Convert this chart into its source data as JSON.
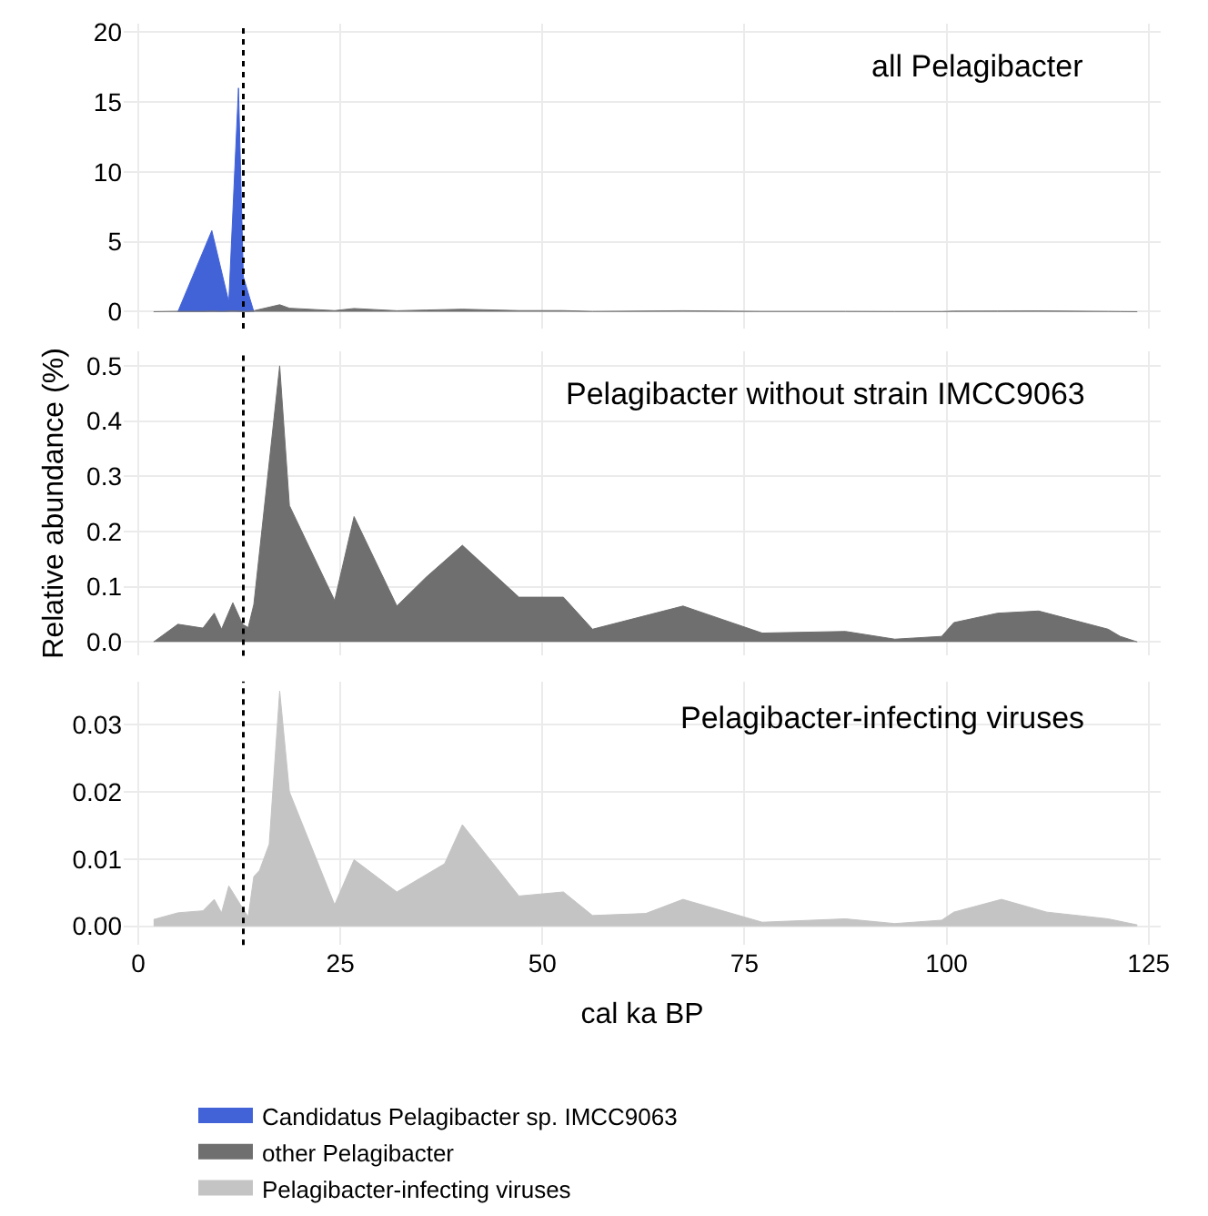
{
  "chart_data": [
    {
      "type": "area",
      "title": "all Pelagibacter",
      "xlim": [
        -1.8,
        126.5
      ],
      "xticks": [
        0,
        25,
        50,
        75,
        100,
        125
      ],
      "ylim": [
        -1.2,
        20.6
      ],
      "yticks": [
        0,
        5,
        10,
        15,
        20
      ],
      "grid": true,
      "tick_labels": "y",
      "legend": "bottom",
      "ref_lines": [
        {
          "axis": "x",
          "value": 13,
          "color": "#000000",
          "line_style": "dotted"
        }
      ],
      "series": [
        {
          "name": "Candidatus Pelagibacter sp. IMCC9063",
          "color": "#4262d8",
          "x": [
            4.9,
            9.1,
            11.2,
            12.4,
            13.0,
            14.3
          ],
          "values": [
            0,
            5.8,
            0.7,
            16,
            2.5,
            0
          ]
        },
        {
          "name": "other Pelagibacter",
          "color": "#6f6f6f",
          "x": [
            1.9,
            4.9,
            8.0,
            9.4,
            10.3,
            11.7,
            12.9,
            13.6,
            14.3,
            17.5,
            18.7,
            24.3,
            26.7,
            32.0,
            35.6,
            40.1,
            47.1,
            52.6,
            56.2,
            67.4,
            77.2,
            87.5,
            93.6,
            99.4,
            100.9,
            106.3,
            111.4,
            120.0,
            121.5,
            123.6
          ],
          "values": [
            0,
            0.03,
            0.03,
            0.05,
            0.02,
            0.07,
            0.03,
            0.03,
            0.07,
            0.5,
            0.25,
            0.08,
            0.23,
            0.07,
            0.12,
            0.18,
            0.08,
            0.08,
            0.02,
            0.07,
            0.02,
            0.02,
            0.01,
            0.01,
            0.04,
            0.05,
            0.06,
            0.02,
            0.01,
            0
          ]
        }
      ]
    },
    {
      "type": "area",
      "title": "Pelagibacter without strain IMCC9063",
      "ylabel": "Relative abundance (%)",
      "xlim": [
        -1.8,
        126.5
      ],
      "xticks": [
        0,
        25,
        50,
        75,
        100,
        125
      ],
      "ylim": [
        -0.025,
        0.527
      ],
      "yticks": [
        {
          "value": 0,
          "label": "0.0"
        },
        0.1,
        0.2,
        0.3,
        0.4,
        0.5
      ],
      "grid": true,
      "tick_labels": "y",
      "ref_lines": [
        {
          "axis": "x",
          "value": 13,
          "color": "#000000",
          "line_style": "dotted"
        }
      ],
      "series": [
        {
          "color": "#6f6f6f",
          "x": [
            1.9,
            4.9,
            8.0,
            9.4,
            10.3,
            11.7,
            12.9,
            13.6,
            14.3,
            17.5,
            18.7,
            24.3,
            26.7,
            32.0,
            35.6,
            40.1,
            47.1,
            52.6,
            56.2,
            67.4,
            77.2,
            87.5,
            93.6,
            99.4,
            100.9,
            106.3,
            111.4,
            120.0,
            121.5,
            123.6
          ],
          "values": [
            0,
            0.032,
            0.025,
            0.052,
            0.023,
            0.071,
            0.032,
            0.026,
            0.068,
            0.5,
            0.247,
            0.075,
            0.227,
            0.065,
            0.117,
            0.175,
            0.081,
            0.081,
            0.023,
            0.065,
            0.016,
            0.019,
            0.005,
            0.01,
            0.035,
            0.052,
            0.056,
            0.023,
            0.01,
            0
          ]
        }
      ]
    },
    {
      "type": "area",
      "title": "Pelagibacter-infecting viruses",
      "xlabel": "cal ka BP",
      "xlim": [
        -1.8,
        126.5
      ],
      "xticks": [
        0,
        25,
        50,
        75,
        100,
        125
      ],
      "ylim": [
        -0.0028,
        0.0364
      ],
      "yticks": [
        {
          "value": 0,
          "label": "0.00"
        },
        0.01,
        0.02,
        0.03
      ],
      "grid": true,
      "ref_lines": [
        {
          "axis": "x",
          "value": 13,
          "color": "#000000",
          "line_style": "dotted"
        }
      ],
      "series": [
        {
          "name": "Pelagibacter-infecting viruses",
          "color": "#c4c4c4",
          "x": [
            1.9,
            4.9,
            8.0,
            9.4,
            10.3,
            11.2,
            12.9,
            13.6,
            14.3,
            15.0,
            16.2,
            17.5,
            18.7,
            24.3,
            26.7,
            32.0,
            37.9,
            40.1,
            47.1,
            52.6,
            56.2,
            62.8,
            67.4,
            77.2,
            87.5,
            93.6,
            99.4,
            100.9,
            106.8,
            112.4,
            120.0,
            123.6
          ],
          "values": [
            0.001,
            0.002,
            0.0023,
            0.004,
            0.002,
            0.006,
            0.0027,
            0.0014,
            0.0074,
            0.0083,
            0.0122,
            0.035,
            0.02,
            0.0032,
            0.0099,
            0.0051,
            0.0093,
            0.0151,
            0.0045,
            0.0051,
            0.0016,
            0.0019,
            0.004,
            0.0006,
            0.0011,
            0.0004,
            0.0009,
            0.0021,
            0.004,
            0.0021,
            0.0011,
            0.0002
          ]
        }
      ]
    }
  ]
}
